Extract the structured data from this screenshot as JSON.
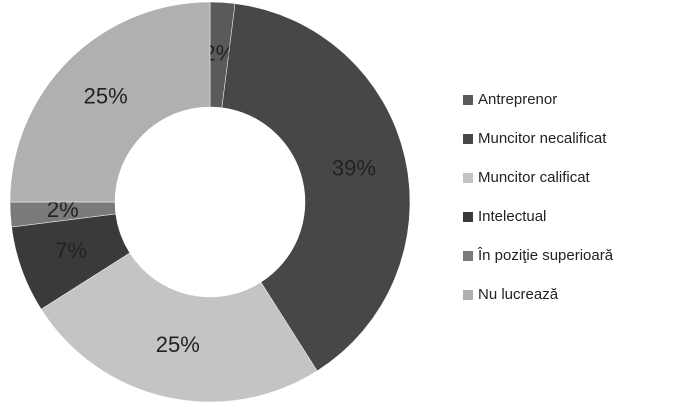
{
  "chart_data": {
    "type": "donut",
    "categories": [
      "Antreprenor",
      "Muncitor necalificat",
      "Muncitor calificat",
      "Intelectual",
      "În poziţie superioară",
      "Nu lucrează"
    ],
    "values": [
      2,
      39,
      25,
      7,
      2,
      25
    ],
    "value_labels": [
      "2%",
      "39%",
      "25%",
      "7%",
      "2%",
      "25%"
    ],
    "colors": [
      "#5a5a5a",
      "#474747",
      "#c4c4c4",
      "#3a3a3a",
      "#7a7a7a",
      "#b0b0b0"
    ],
    "legend": "right"
  }
}
